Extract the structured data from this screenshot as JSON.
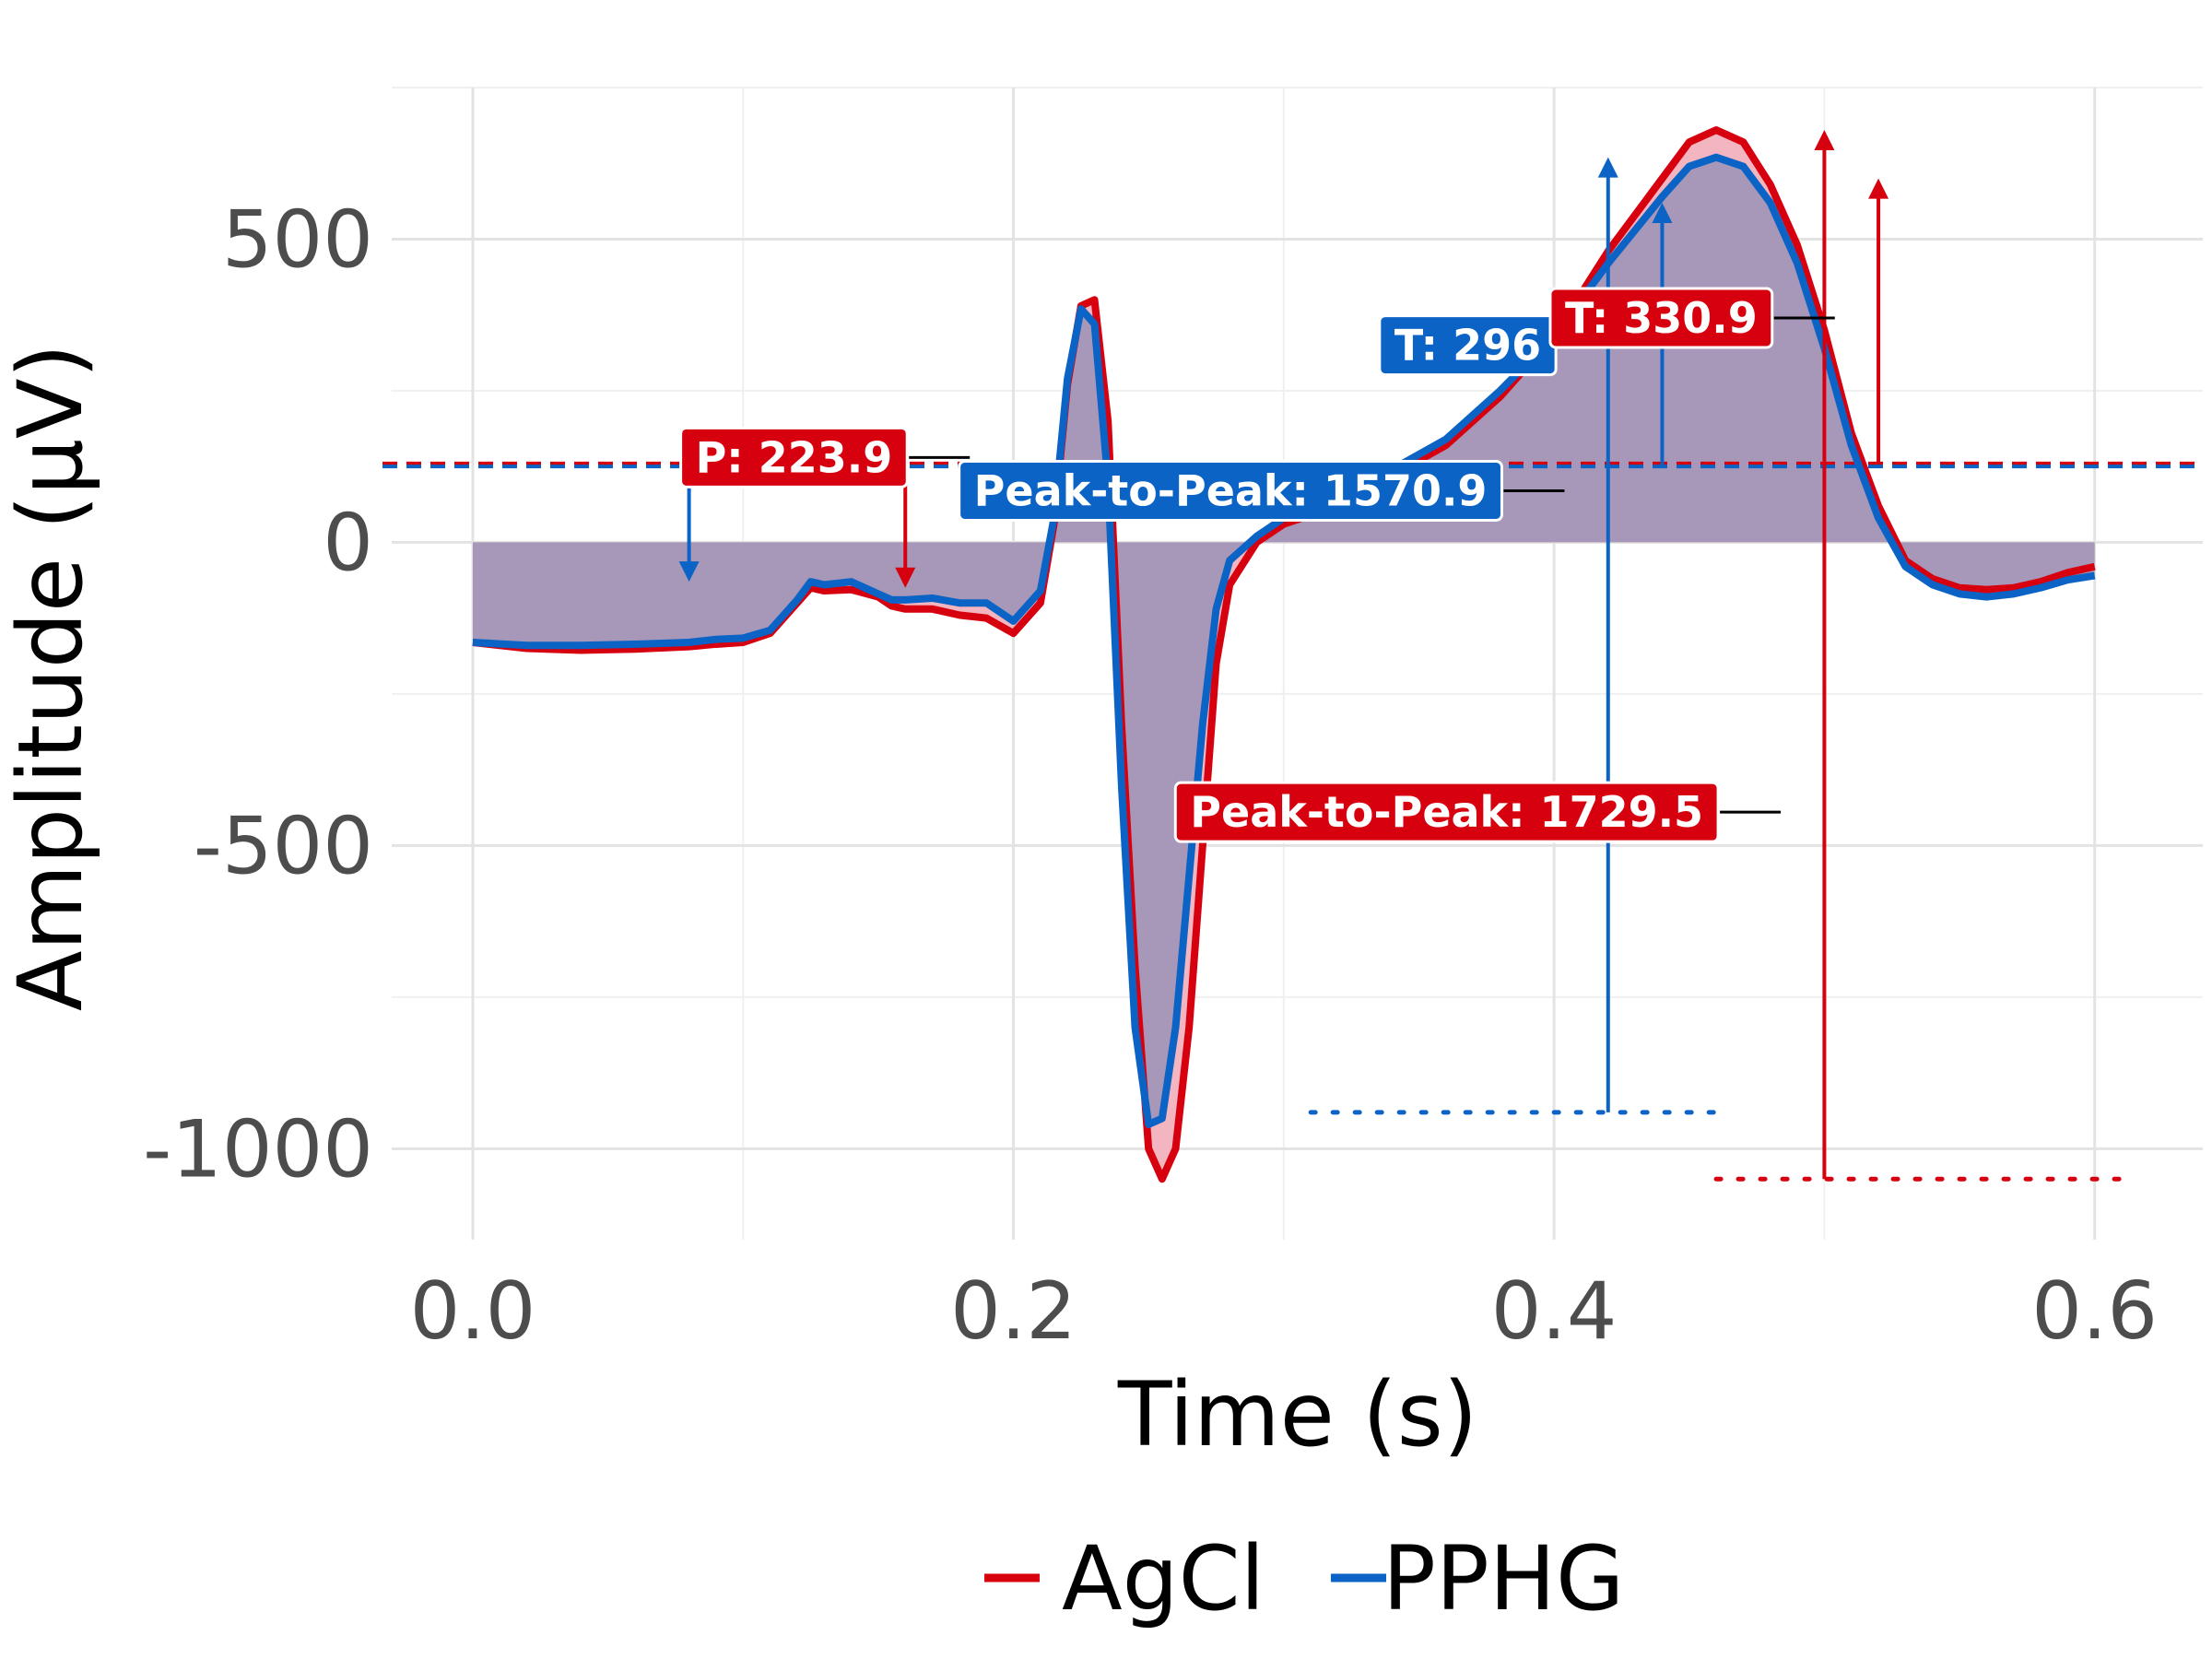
{
  "chart_data": {
    "type": "line",
    "title": "",
    "xlabel": "Time (s)",
    "ylabel": "Amplitude (μV)",
    "xlim": [
      -0.03,
      0.64
    ],
    "ylim": [
      -1150,
      750
    ],
    "x_ticks": [
      0.0,
      0.2,
      0.4,
      0.6
    ],
    "x_tick_labels": [
      "0.0",
      "0.2",
      "0.4",
      "0.6"
    ],
    "y_ticks": [
      500,
      0,
      -500,
      -1000
    ],
    "y_tick_labels": [
      "500",
      "0",
      "-500",
      "-1000"
    ],
    "y_minor_ticks": [
      750,
      250,
      -250,
      -750
    ],
    "x_minor_ticks": [
      0.1,
      0.3,
      0.5
    ],
    "legend": {
      "position": "bottom",
      "entries": [
        "AgCl",
        "PPHG"
      ]
    },
    "colors": {
      "AgCl": "#d7000f",
      "PPHG": "#0b63c5",
      "fill": "#a797b8",
      "diff_fill": "#f3b5bf"
    },
    "baseline": {
      "AgCl": 130,
      "PPHG": 125
    },
    "series": [
      {
        "name": "AgCl",
        "x": [
          0.0,
          0.02,
          0.04,
          0.06,
          0.08,
          0.09,
          0.1,
          0.11,
          0.12,
          0.125,
          0.13,
          0.14,
          0.15,
          0.155,
          0.16,
          0.17,
          0.18,
          0.19,
          0.2,
          0.21,
          0.215,
          0.22,
          0.225,
          0.23,
          0.235,
          0.24,
          0.245,
          0.25,
          0.255,
          0.26,
          0.265,
          0.27,
          0.275,
          0.28,
          0.29,
          0.3,
          0.32,
          0.34,
          0.36,
          0.38,
          0.4,
          0.42,
          0.44,
          0.45,
          0.46,
          0.47,
          0.48,
          0.49,
          0.5,
          0.51,
          0.52,
          0.53,
          0.54,
          0.55,
          0.56,
          0.57,
          0.58,
          0.59,
          0.6
        ],
        "values": [
          -165,
          -175,
          -178,
          -176,
          -172,
          -168,
          -165,
          -150,
          -100,
          -75,
          -80,
          -78,
          -90,
          -105,
          -110,
          -110,
          -120,
          -125,
          -150,
          -100,
          30,
          260,
          390,
          400,
          200,
          -300,
          -700,
          -1000,
          -1050,
          -1000,
          -800,
          -500,
          -200,
          -70,
          0,
          30,
          60,
          110,
          160,
          240,
          340,
          480,
          600,
          660,
          680,
          660,
          590,
          490,
          350,
          180,
          60,
          -30,
          -60,
          -75,
          -78,
          -75,
          -65,
          -50,
          -40
        ]
      },
      {
        "name": "PPHG",
        "x": [
          0.0,
          0.02,
          0.04,
          0.06,
          0.08,
          0.09,
          0.1,
          0.11,
          0.12,
          0.125,
          0.13,
          0.14,
          0.15,
          0.155,
          0.16,
          0.17,
          0.18,
          0.19,
          0.2,
          0.21,
          0.215,
          0.22,
          0.225,
          0.23,
          0.235,
          0.24,
          0.245,
          0.25,
          0.255,
          0.26,
          0.265,
          0.27,
          0.275,
          0.28,
          0.29,
          0.3,
          0.32,
          0.34,
          0.36,
          0.38,
          0.4,
          0.42,
          0.44,
          0.45,
          0.46,
          0.47,
          0.48,
          0.49,
          0.5,
          0.51,
          0.52,
          0.53,
          0.54,
          0.55,
          0.56,
          0.57,
          0.58,
          0.59,
          0.6
        ],
        "values": [
          -165,
          -170,
          -170,
          -168,
          -165,
          -160,
          -158,
          -145,
          -95,
          -65,
          -70,
          -65,
          -85,
          -95,
          -95,
          -92,
          -100,
          -100,
          -130,
          -80,
          40,
          270,
          385,
          360,
          100,
          -400,
          -800,
          -960,
          -950,
          -800,
          -550,
          -300,
          -110,
          -30,
          10,
          40,
          70,
          120,
          170,
          250,
          340,
          460,
          570,
          620,
          635,
          620,
          560,
          460,
          320,
          160,
          40,
          -40,
          -70,
          -85,
          -90,
          -85,
          -75,
          -62,
          -55
        ]
      }
    ],
    "annotations": [
      {
        "label": "P: 223.9",
        "series": "AgCl",
        "x": 0.16,
        "y": 140
      },
      {
        "label": "T: 296",
        "series": "PPHG",
        "x": 0.4,
        "y": 325
      },
      {
        "label": "T: 330.9",
        "series": "AgCl",
        "x": 0.48,
        "y": 370
      },
      {
        "label": "Peak-to-Peak: 1570.9",
        "series": "PPHG",
        "x": 0.38,
        "y": 85
      },
      {
        "label": "Peak-to-Peak: 1729.5",
        "series": "AgCl",
        "x": 0.46,
        "y": -445
      }
    ],
    "arrows": [
      {
        "series": "PPHG",
        "x": 0.08,
        "from": 125,
        "to": -65
      },
      {
        "series": "AgCl",
        "x": 0.16,
        "from": 130,
        "to": -75
      },
      {
        "series": "PPHG",
        "x": 0.42,
        "from": -940,
        "to": 635
      },
      {
        "series": "PPHG",
        "x": 0.44,
        "from": 125,
        "to": 560
      },
      {
        "series": "AgCl",
        "x": 0.5,
        "from": -1050,
        "to": 680
      },
      {
        "series": "AgCl",
        "x": 0.52,
        "from": 130,
        "to": 600
      }
    ],
    "min_lines": [
      {
        "series": "PPHG",
        "y": -940,
        "x_from": 0.31,
        "x_to": 0.46
      },
      {
        "series": "AgCl",
        "y": -1050,
        "x_from": 0.46,
        "x_to": 0.61
      }
    ]
  }
}
